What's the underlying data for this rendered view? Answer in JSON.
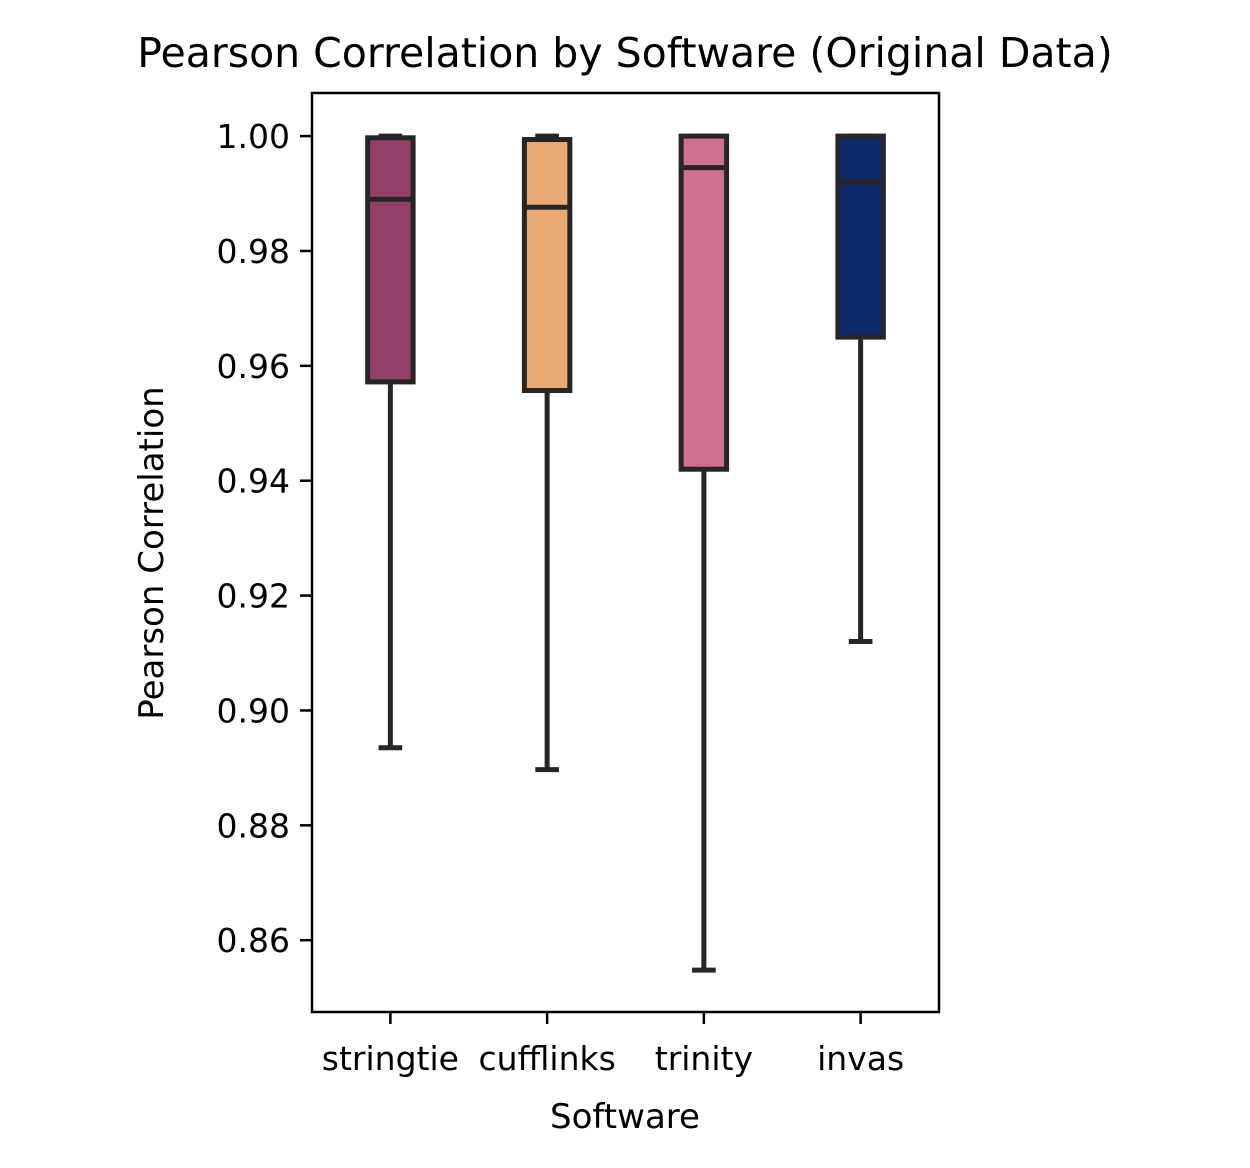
{
  "chart_data": {
    "type": "box",
    "title": "Pearson Correlation by Software (Original Data)",
    "xlabel": "Software",
    "ylabel": "Pearson Correlation",
    "ylim": [
      0.8475,
      1.0075
    ],
    "yticks": [
      0.86,
      0.88,
      0.9,
      0.92,
      0.94,
      0.96,
      0.98,
      1.0
    ],
    "ytick_labels": [
      "0.86",
      "0.88",
      "0.90",
      "0.92",
      "0.94",
      "0.96",
      "0.98",
      "1.00"
    ],
    "grid": false,
    "categories": [
      "stringtie",
      "cufflinks",
      "trinity",
      "invas"
    ],
    "boxes": [
      {
        "category": "stringtie",
        "whisker_low": 0.8935,
        "q1": 0.9572,
        "median": 0.989,
        "q3": 0.9997,
        "whisker_high": 1.0,
        "color": "#943f68"
      },
      {
        "category": "cufflinks",
        "whisker_low": 0.8897,
        "q1": 0.9557,
        "median": 0.9876,
        "q3": 0.9994,
        "whisker_high": 1.0,
        "color": "#eba974"
      },
      {
        "category": "trinity",
        "whisker_low": 0.8548,
        "q1": 0.942,
        "median": 0.9945,
        "q3": 1.0,
        "whisker_high": 1.0,
        "color": "#d06f8e"
      },
      {
        "category": "invas",
        "whisker_low": 0.912,
        "q1": 0.965,
        "median": 0.992,
        "q3": 1.0,
        "whisker_high": 1.0,
        "color": "#0c2a6c"
      }
    ]
  }
}
